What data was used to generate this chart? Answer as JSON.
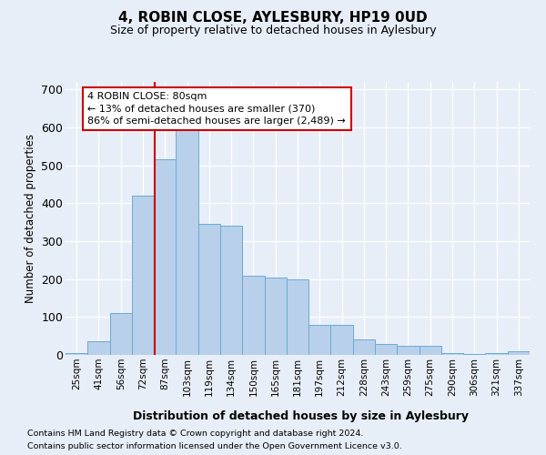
{
  "title": "4, ROBIN CLOSE, AYLESBURY, HP19 0UD",
  "subtitle": "Size of property relative to detached houses in Aylesbury",
  "xlabel": "Distribution of detached houses by size in Aylesbury",
  "ylabel": "Number of detached properties",
  "bins": [
    "25sqm",
    "41sqm",
    "56sqm",
    "72sqm",
    "87sqm",
    "103sqm",
    "119sqm",
    "134sqm",
    "150sqm",
    "165sqm",
    "181sqm",
    "197sqm",
    "212sqm",
    "228sqm",
    "243sqm",
    "259sqm",
    "275sqm",
    "290sqm",
    "306sqm",
    "321sqm",
    "337sqm"
  ],
  "values": [
    5,
    35,
    110,
    420,
    515,
    650,
    345,
    340,
    210,
    205,
    200,
    80,
    80,
    40,
    30,
    25,
    25,
    5,
    2,
    5,
    10
  ],
  "bar_color": "#b8d0ea",
  "bar_edge_color": "#6aaad4",
  "vline_x_idx": 3.53,
  "vline_color": "#cc0000",
  "annotation_text": "4 ROBIN CLOSE: 80sqm\n← 13% of detached houses are smaller (370)\n86% of semi-detached houses are larger (2,489) →",
  "annotation_box_color": "white",
  "annotation_box_edge": "#cc0000",
  "ylim": [
    0,
    720
  ],
  "yticks": [
    0,
    100,
    200,
    300,
    400,
    500,
    600,
    700
  ],
  "footer1": "Contains HM Land Registry data © Crown copyright and database right 2024.",
  "footer2": "Contains public sector information licensed under the Open Government Licence v3.0.",
  "bg_color": "#e8eef8",
  "plot_bg_color": "#e8eef8"
}
